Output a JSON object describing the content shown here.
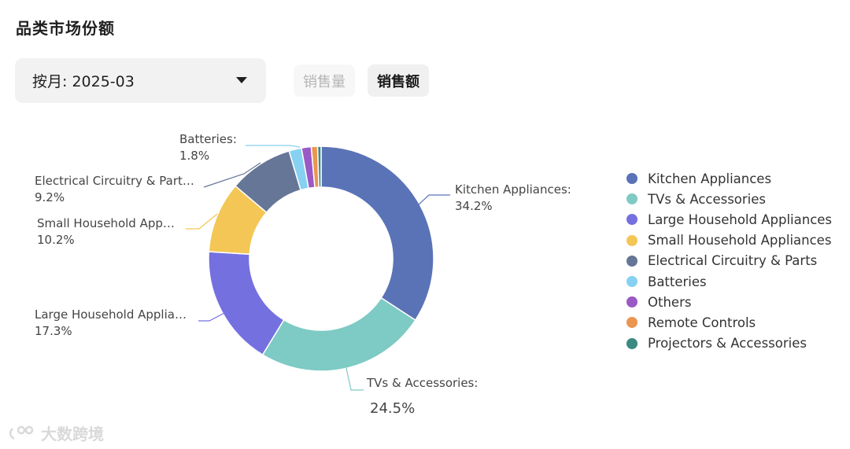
{
  "header": {
    "title": "品类市场份额"
  },
  "controls": {
    "period_select": "按月: 2025-03",
    "toggle_quantity": "销售量",
    "toggle_amount": "销售额"
  },
  "chart_data": {
    "type": "pie",
    "donut": true,
    "legend_position": "right",
    "series": [
      {
        "name": "Kitchen Appliances",
        "value": 34.2,
        "label_name": "Kitchen Appliances:",
        "label_value": "34.2%",
        "color": "#5a73b7"
      },
      {
        "name": "TVs & Accessories",
        "value": 24.5,
        "label_name": "TVs & Accessories:",
        "label_value": "24.5%",
        "color": "#7ecac4"
      },
      {
        "name": "Large Household Appliances",
        "value": 17.3,
        "label_name": "Large Household Applia…",
        "label_value": "17.3%",
        "color": "#7470e0"
      },
      {
        "name": "Small Household Appliances",
        "value": 10.2,
        "label_name": "Small Household App…",
        "label_value": "10.2%",
        "color": "#f4c655"
      },
      {
        "name": "Electrical Circuitry & Parts",
        "value": 9.2,
        "label_name": "Electrical Circuitry & Part…",
        "label_value": "9.2%",
        "color": "#667697"
      },
      {
        "name": "Batteries",
        "value": 1.8,
        "label_name": "Batteries:",
        "label_value": "1.8%",
        "color": "#86d1f2"
      },
      {
        "name": "Others",
        "value": 1.4,
        "color": "#9b59c5"
      },
      {
        "name": "Remote Controls",
        "value": 0.9,
        "color": "#ea9650"
      },
      {
        "name": "Projectors & Accessories",
        "value": 0.5,
        "color": "#3a8a82"
      }
    ]
  },
  "watermark": {
    "text": "大数跨境"
  }
}
